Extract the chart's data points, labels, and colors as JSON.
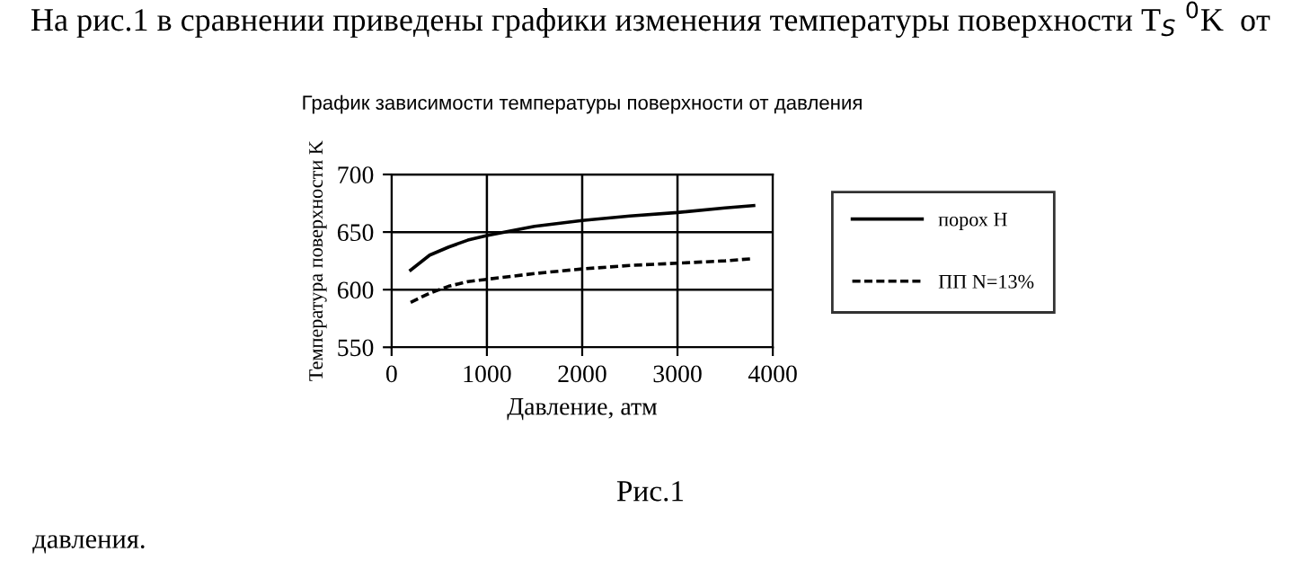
{
  "chart_data": {
    "type": "line",
    "title": "График зависимости температуры поверхности от давления",
    "xlabel": "Давление, атм",
    "ylabel": "Температура поверхности K",
    "x": [
      200,
      400,
      600,
      800,
      1000,
      1500,
      2000,
      2500,
      3000,
      3500,
      3800
    ],
    "series": [
      {
        "name": "порох Н",
        "color": "#000000",
        "line_style": "solid",
        "values": [
          617,
          630,
          637,
          643,
          647,
          655,
          660,
          664,
          667,
          671,
          673
        ]
      },
      {
        "name": "ПП N=13%",
        "color": "#000000",
        "line_style": "dashed",
        "values": [
          589,
          597,
          603,
          607,
          609,
          614,
          618,
          621,
          623,
          625,
          627
        ]
      }
    ],
    "xlim": [
      0,
      4000
    ],
    "xticks": [
      0,
      1000,
      2000,
      3000,
      4000
    ],
    "ylim": [
      550,
      700
    ],
    "yticks": [
      550,
      600,
      650,
      700
    ],
    "grid": true,
    "legend": "right",
    "marker": "none",
    "annotations": [
      "На рис.1 в сравнении приведены графики изменения температуры поверхности T$_{S}$ $^{0}$K  от",
      "Рис.1",
      "давления."
    ]
  }
}
